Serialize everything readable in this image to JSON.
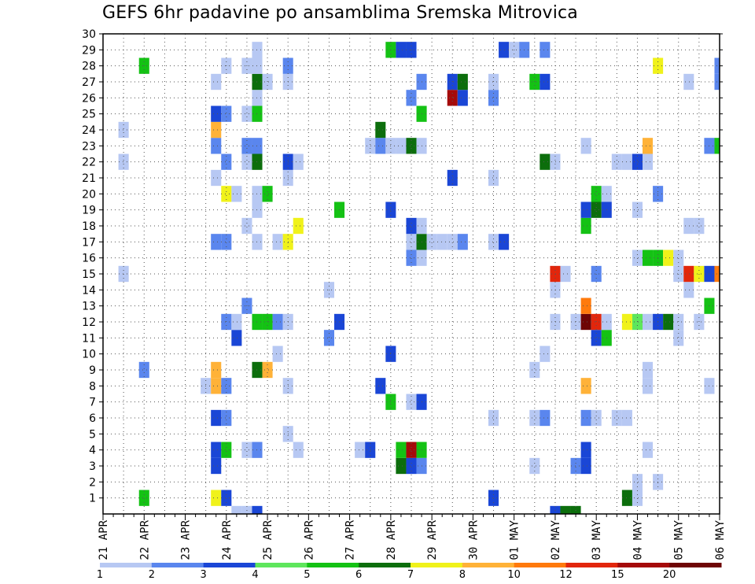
{
  "title": "GEFS 6hr padavine po ansamblima Sremska Mitrovica",
  "colors": {
    "frame": "#000000",
    "grid": "#555555",
    "background": "#ffffff"
  },
  "chart_data": {
    "type": "heatmap",
    "title": "GEFS 6hr padavine po ansamblima Sremska Mitrovica",
    "x_unit": "6-hour step starting 21 APR 00Z",
    "x_range": [
      0,
      60
    ],
    "x_ticks": [
      {
        "step": 0,
        "label": "21 APR"
      },
      {
        "step": 4,
        "label": "22 APR"
      },
      {
        "step": 8,
        "label": "23 APR"
      },
      {
        "step": 12,
        "label": "24 APR"
      },
      {
        "step": 16,
        "label": "25 APR"
      },
      {
        "step": 20,
        "label": "26 APR"
      },
      {
        "step": 24,
        "label": "27 APR"
      },
      {
        "step": 28,
        "label": "28 APR"
      },
      {
        "step": 32,
        "label": "29 APR"
      },
      {
        "step": 36,
        "label": "30 APR"
      },
      {
        "step": 40,
        "label": "01 MAY"
      },
      {
        "step": 44,
        "label": "02 MAY"
      },
      {
        "step": 48,
        "label": "03 MAY"
      },
      {
        "step": 52,
        "label": "04 MAY"
      },
      {
        "step": 56,
        "label": "05 MAY"
      },
      {
        "step": 60,
        "label": "06 MAY"
      }
    ],
    "y_range": [
      0,
      30
    ],
    "y_ticks": [
      1,
      2,
      3,
      4,
      5,
      6,
      7,
      8,
      9,
      10,
      11,
      12,
      13,
      14,
      15,
      16,
      17,
      18,
      19,
      20,
      21,
      22,
      23,
      24,
      25,
      26,
      27,
      28,
      29,
      30
    ],
    "grid": true,
    "levels": [
      1,
      2,
      3,
      4,
      5,
      6,
      7,
      8,
      10,
      12,
      15,
      20
    ],
    "level_labels": [
      "1",
      "2",
      "3",
      "4",
      "5",
      "6",
      "7",
      "8",
      "10",
      "12",
      "15",
      "20"
    ],
    "level_colors": [
      "#b7c8f3",
      "#5a86ee",
      "#1a46d6",
      "#5ee65c",
      "#14c214",
      "#0c6e0c",
      "#f0f21a",
      "#ffb238",
      "#ff7a0c",
      "#e2260c",
      "#a50a0a",
      "#6e0505"
    ],
    "legend_placement": "bottom",
    "cells": [
      [
        13,
        0,
        1
      ],
      [
        14,
        0,
        1
      ],
      [
        15,
        0,
        3
      ],
      [
        44,
        0,
        3
      ],
      [
        45,
        0,
        6
      ],
      [
        46,
        0,
        6
      ],
      [
        4,
        1,
        5
      ],
      [
        11,
        1,
        7
      ],
      [
        12,
        1,
        3
      ],
      [
        38,
        1,
        3
      ],
      [
        51,
        1,
        6
      ],
      [
        52,
        1,
        1
      ],
      [
        52,
        2,
        1
      ],
      [
        54,
        2,
        1
      ],
      [
        11,
        3,
        3
      ],
      [
        29,
        3,
        6
      ],
      [
        30,
        3,
        3
      ],
      [
        31,
        3,
        2
      ],
      [
        42,
        3,
        1
      ],
      [
        46,
        3,
        2
      ],
      [
        47,
        3,
        3
      ],
      [
        11,
        4,
        3
      ],
      [
        12,
        4,
        5
      ],
      [
        14,
        4,
        1
      ],
      [
        15,
        4,
        2
      ],
      [
        19,
        4,
        1
      ],
      [
        25,
        4,
        1
      ],
      [
        26,
        4,
        3
      ],
      [
        29,
        4,
        5
      ],
      [
        30,
        4,
        11
      ],
      [
        31,
        4,
        5
      ],
      [
        47,
        4,
        3
      ],
      [
        53,
        4,
        1
      ],
      [
        18,
        5,
        1
      ],
      [
        11,
        6,
        3
      ],
      [
        12,
        6,
        2
      ],
      [
        38,
        6,
        1
      ],
      [
        42,
        6,
        1
      ],
      [
        43,
        6,
        2
      ],
      [
        47,
        6,
        2
      ],
      [
        48,
        6,
        1
      ],
      [
        50,
        6,
        1
      ],
      [
        51,
        6,
        1
      ],
      [
        28,
        7,
        5
      ],
      [
        30,
        7,
        1
      ],
      [
        31,
        7,
        3
      ],
      [
        10,
        8,
        1
      ],
      [
        11,
        8,
        8
      ],
      [
        12,
        8,
        2
      ],
      [
        18,
        8,
        1
      ],
      [
        27,
        8,
        3
      ],
      [
        47,
        8,
        8
      ],
      [
        53,
        8,
        1
      ],
      [
        59,
        8,
        1
      ],
      [
        4,
        9,
        2
      ],
      [
        11,
        9,
        8
      ],
      [
        15,
        9,
        6
      ],
      [
        16,
        9,
        8
      ],
      [
        42,
        9,
        1
      ],
      [
        53,
        9,
        1
      ],
      [
        17,
        10,
        1
      ],
      [
        28,
        10,
        3
      ],
      [
        43,
        10,
        1
      ],
      [
        13,
        11,
        3
      ],
      [
        22,
        11,
        2
      ],
      [
        48,
        11,
        3
      ],
      [
        49,
        11,
        5
      ],
      [
        56,
        11,
        1
      ],
      [
        12,
        12,
        2
      ],
      [
        13,
        12,
        1
      ],
      [
        15,
        12,
        5
      ],
      [
        16,
        12,
        5
      ],
      [
        17,
        12,
        2
      ],
      [
        18,
        12,
        1
      ],
      [
        23,
        12,
        3
      ],
      [
        44,
        12,
        1
      ],
      [
        46,
        12,
        1
      ],
      [
        47,
        12,
        12
      ],
      [
        48,
        12,
        10
      ],
      [
        49,
        12,
        1
      ],
      [
        51,
        12,
        7
      ],
      [
        52,
        12,
        4
      ],
      [
        53,
        12,
        1
      ],
      [
        54,
        12,
        3
      ],
      [
        55,
        12,
        6
      ],
      [
        56,
        12,
        1
      ],
      [
        58,
        12,
        1
      ],
      [
        14,
        13,
        2
      ],
      [
        47,
        13,
        9
      ],
      [
        59,
        13,
        5
      ],
      [
        22,
        14,
        1
      ],
      [
        44,
        14,
        1
      ],
      [
        57,
        14,
        1
      ],
      [
        2,
        15,
        1
      ],
      [
        44,
        15,
        10
      ],
      [
        45,
        15,
        1
      ],
      [
        48,
        15,
        2
      ],
      [
        56,
        15,
        1
      ],
      [
        57,
        15,
        10
      ],
      [
        58,
        15,
        7
      ],
      [
        59,
        15,
        3
      ],
      [
        60,
        15,
        9
      ],
      [
        30,
        16,
        2
      ],
      [
        31,
        16,
        1
      ],
      [
        52,
        16,
        1
      ],
      [
        53,
        16,
        5
      ],
      [
        54,
        16,
        5
      ],
      [
        55,
        16,
        7
      ],
      [
        56,
        16,
        1
      ],
      [
        11,
        17,
        2
      ],
      [
        12,
        17,
        2
      ],
      [
        15,
        17,
        1
      ],
      [
        17,
        17,
        1
      ],
      [
        18,
        17,
        7
      ],
      [
        30,
        17,
        1
      ],
      [
        31,
        17,
        6
      ],
      [
        32,
        17,
        1
      ],
      [
        33,
        17,
        1
      ],
      [
        34,
        17,
        1
      ],
      [
        35,
        17,
        2
      ],
      [
        38,
        17,
        1
      ],
      [
        39,
        17,
        3
      ],
      [
        14,
        18,
        1
      ],
      [
        19,
        18,
        7
      ],
      [
        30,
        18,
        3
      ],
      [
        31,
        18,
        1
      ],
      [
        47,
        18,
        5
      ],
      [
        57,
        18,
        1
      ],
      [
        58,
        18,
        1
      ],
      [
        15,
        19,
        1
      ],
      [
        23,
        19,
        5
      ],
      [
        28,
        19,
        3
      ],
      [
        47,
        19,
        3
      ],
      [
        48,
        19,
        6
      ],
      [
        49,
        19,
        3
      ],
      [
        52,
        19,
        1
      ],
      [
        12,
        20,
        7
      ],
      [
        13,
        20,
        1
      ],
      [
        15,
        20,
        1
      ],
      [
        16,
        20,
        5
      ],
      [
        48,
        20,
        5
      ],
      [
        49,
        20,
        1
      ],
      [
        54,
        20,
        2
      ],
      [
        11,
        21,
        1
      ],
      [
        18,
        21,
        1
      ],
      [
        34,
        21,
        3
      ],
      [
        38,
        21,
        1
      ],
      [
        2,
        22,
        1
      ],
      [
        12,
        22,
        2
      ],
      [
        14,
        22,
        1
      ],
      [
        15,
        22,
        6
      ],
      [
        18,
        22,
        3
      ],
      [
        19,
        22,
        1
      ],
      [
        43,
        22,
        6
      ],
      [
        44,
        22,
        1
      ],
      [
        50,
        22,
        1
      ],
      [
        51,
        22,
        1
      ],
      [
        52,
        22,
        3
      ],
      [
        53,
        22,
        1
      ],
      [
        11,
        23,
        2
      ],
      [
        14,
        23,
        2
      ],
      [
        15,
        23,
        2
      ],
      [
        26,
        23,
        1
      ],
      [
        27,
        23,
        2
      ],
      [
        28,
        23,
        1
      ],
      [
        29,
        23,
        1
      ],
      [
        30,
        23,
        6
      ],
      [
        31,
        23,
        1
      ],
      [
        47,
        23,
        1
      ],
      [
        53,
        23,
        8
      ],
      [
        59,
        23,
        2
      ],
      [
        60,
        23,
        5
      ],
      [
        2,
        24,
        1
      ],
      [
        11,
        24,
        8
      ],
      [
        27,
        24,
        6
      ],
      [
        11,
        25,
        3
      ],
      [
        12,
        25,
        2
      ],
      [
        14,
        25,
        1
      ],
      [
        15,
        25,
        5
      ],
      [
        31,
        25,
        5
      ],
      [
        15,
        26,
        1
      ],
      [
        30,
        26,
        2
      ],
      [
        34,
        26,
        11
      ],
      [
        35,
        26,
        3
      ],
      [
        38,
        26,
        2
      ],
      [
        11,
        27,
        1
      ],
      [
        15,
        27,
        6
      ],
      [
        16,
        27,
        1
      ],
      [
        18,
        27,
        1
      ],
      [
        31,
        27,
        2
      ],
      [
        34,
        27,
        3
      ],
      [
        35,
        27,
        6
      ],
      [
        38,
        27,
        1
      ],
      [
        42,
        27,
        5
      ],
      [
        43,
        27,
        3
      ],
      [
        57,
        27,
        1
      ],
      [
        60,
        27,
        2
      ],
      [
        4,
        28,
        5
      ],
      [
        12,
        28,
        1
      ],
      [
        14,
        28,
        1
      ],
      [
        15,
        28,
        1
      ],
      [
        18,
        28,
        2
      ],
      [
        54,
        28,
        7
      ],
      [
        60,
        28,
        2
      ],
      [
        15,
        29,
        1
      ],
      [
        28,
        29,
        5
      ],
      [
        29,
        29,
        3
      ],
      [
        30,
        29,
        3
      ],
      [
        39,
        29,
        3
      ],
      [
        40,
        29,
        1
      ],
      [
        41,
        29,
        2
      ],
      [
        43,
        29,
        2
      ]
    ]
  }
}
